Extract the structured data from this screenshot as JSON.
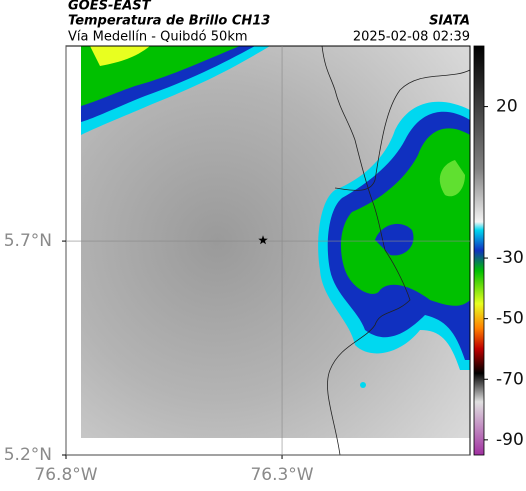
{
  "header": {
    "product": "GOES-EAST",
    "title": "Temperatura de Brillo CH13",
    "subtitle": "Vía Medellín - Quibdó 50km",
    "source": "SIATA",
    "datetime": "2025-02-08 02:39"
  },
  "map": {
    "xlim": [
      -76.8,
      -75.865
    ],
    "ylim": [
      5.2,
      6.156
    ],
    "xticks": [
      {
        "value": -76.8,
        "label": "76.8°W"
      },
      {
        "value": -76.3,
        "label": "76.3°W"
      }
    ],
    "yticks": [
      {
        "value": 5.7,
        "label": "5.7°N"
      },
      {
        "value": 5.2,
        "label": "5.2°N"
      }
    ],
    "grid": true,
    "marker": {
      "lon": -76.344,
      "lat": 5.702
    }
  },
  "colorbar": {
    "clim": [
      -95,
      40
    ],
    "ticks": [
      20,
      -30,
      -50,
      -70,
      -90
    ]
  }
}
